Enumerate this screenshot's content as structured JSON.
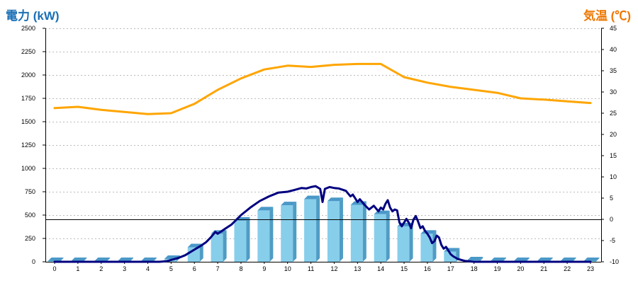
{
  "chart_data": {
    "type": "bar+line",
    "left_axis_title": "電力 (kW)",
    "right_axis_title": "気温 (℃)",
    "colors": {
      "left_title": "#1a6fb5",
      "right_title": "#ee7700",
      "bar_front": "#87ceeb",
      "bar_side": "#4f9cc4",
      "bar_top": "#4a98c8",
      "power_line": "#000080",
      "temp_line": "#ffa500",
      "grid": "#bbbbbb",
      "zero_line": "#000000"
    },
    "left_axis": {
      "min": 0,
      "max": 2500,
      "ticks": [
        "0",
        "250",
        "500",
        "750",
        "1000",
        "1250",
        "1500",
        "1750",
        "2000",
        "2250",
        "2500"
      ]
    },
    "right_axis": {
      "min": -10,
      "max": 45,
      "ticks": [
        "-10",
        "-5",
        "0",
        "5",
        "10",
        "15",
        "20",
        "25",
        "30",
        "35",
        "40",
        "45"
      ]
    },
    "categories": [
      "0",
      "1",
      "2",
      "3",
      "4",
      "5",
      "6",
      "7",
      "8",
      "9",
      "10",
      "11",
      "12",
      "13",
      "14",
      "15",
      "16",
      "17",
      "18",
      "19",
      "20",
      "21",
      "22",
      "23"
    ],
    "series": [
      {
        "kind": "bar",
        "axis": "left",
        "values": [
          8,
          8,
          8,
          8,
          8,
          30,
          155,
          300,
          440,
          550,
          605,
          670,
          650,
          610,
          510,
          380,
          300,
          110,
          15,
          8,
          8,
          8,
          8,
          8
        ]
      },
      {
        "kind": "line",
        "axis": "left",
        "x": [
          0,
          1,
          2,
          3,
          4,
          4.5,
          4.8,
          5,
          5.3,
          5.6,
          6,
          6.3,
          6.5,
          6.7,
          6.9,
          7,
          7.3,
          7.6,
          8,
          8.4,
          8.8,
          9.2,
          9.6,
          10,
          10.3,
          10.6,
          10.8,
          11,
          11.2,
          11.4,
          11.5,
          11.6,
          11.8,
          12,
          12.2,
          12.5,
          12.7,
          12.8,
          12.9,
          13,
          13.1,
          13.3,
          13.5,
          13.7,
          13.9,
          14,
          14.1,
          14.2,
          14.3,
          14.4,
          14.5,
          14.6,
          14.7,
          14.8,
          14.9,
          15,
          15.1,
          15.2,
          15.3,
          15.4,
          15.5,
          15.6,
          15.7,
          15.8,
          15.9,
          16,
          16.1,
          16.2,
          16.3,
          16.4,
          16.5,
          16.6,
          16.7,
          16.8,
          16.9,
          17,
          17.1,
          17.3,
          17.6,
          18,
          19,
          20,
          21,
          22,
          23
        ],
        "y": [
          0,
          0,
          0,
          0,
          0,
          0,
          5,
          20,
          40,
          70,
          130,
          175,
          210,
          260,
          320,
          300,
          350,
          400,
          500,
          580,
          650,
          700,
          740,
          750,
          770,
          790,
          785,
          800,
          810,
          780,
          640,
          780,
          800,
          790,
          785,
          760,
          700,
          720,
          680,
          640,
          670,
          610,
          560,
          600,
          540,
          580,
          560,
          620,
          660,
          580,
          540,
          560,
          550,
          420,
          380,
          420,
          460,
          420,
          360,
          450,
          490,
          430,
          360,
          380,
          330,
          300,
          260,
          200,
          220,
          280,
          260,
          180,
          140,
          160,
          120,
          80,
          60,
          30,
          10,
          0,
          0,
          0,
          0,
          0,
          0
        ]
      },
      {
        "kind": "line",
        "axis": "right",
        "x": [
          0,
          1,
          2,
          3,
          4,
          5,
          6,
          7,
          8,
          9,
          10,
          11,
          12,
          13,
          14,
          15,
          16,
          17,
          18,
          19,
          20,
          21,
          22,
          23
        ],
        "y": [
          26.2,
          26.5,
          25.8,
          25.3,
          24.8,
          25.0,
          27.2,
          30.5,
          33.2,
          35.3,
          36.2,
          35.9,
          36.4,
          36.6,
          36.6,
          33.5,
          32.2,
          31.2,
          30.5,
          29.8,
          28.5,
          28.2,
          27.8,
          27.4
        ]
      }
    ]
  }
}
